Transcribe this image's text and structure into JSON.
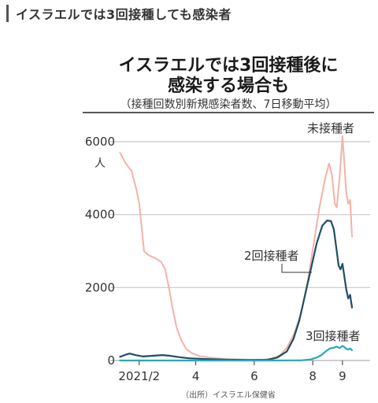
{
  "header": {
    "title": "イスラエルでは3回接種しても感染者"
  },
  "colors": {
    "unvaccinated": "#f2b3a6",
    "two_doses": "#1f4e66",
    "three_doses": "#2aa7b8",
    "grid": "#c8c8c8",
    "baseline": "#b0b0b0"
  },
  "chart_data": {
    "type": "line",
    "title": "イスラエルでは3回接種後に",
    "title_line2": "感染する場合も",
    "subtitle": "（接種回数別新規感染者数、7日移動平均）",
    "ylabel": "",
    "y_unit": "人",
    "ylim": [
      0,
      6000
    ],
    "x_domain": [
      "2021-01-10",
      "2021-09-20"
    ],
    "y_ticks": [
      {
        "value": 0,
        "label": "0"
      },
      {
        "value": 2000,
        "label": "2000"
      },
      {
        "value": 4000,
        "label": "4000"
      },
      {
        "value": 6000,
        "label": "6000"
      }
    ],
    "x_ticks": [
      {
        "date": "2021-02-01",
        "label": "2021/2"
      },
      {
        "date": "2021-04-01",
        "label": "4"
      },
      {
        "date": "2021-06-01",
        "label": "6"
      },
      {
        "date": "2021-08-01",
        "label": "8"
      },
      {
        "date": "2021-09-01",
        "label": "9"
      }
    ],
    "grid": true,
    "series": [
      {
        "name": "未接種者",
        "color_key": "unvaccinated",
        "points": [
          [
            "2021-01-12",
            5700
          ],
          [
            "2021-01-18",
            5400
          ],
          [
            "2021-01-24",
            5200
          ],
          [
            "2021-01-29",
            4700
          ],
          [
            "2021-02-01",
            4300
          ],
          [
            "2021-02-03",
            3800
          ],
          [
            "2021-02-06",
            3000
          ],
          [
            "2021-02-10",
            2900
          ],
          [
            "2021-02-18",
            2800
          ],
          [
            "2021-02-24",
            2700
          ],
          [
            "2021-02-28",
            2500
          ],
          [
            "2021-03-04",
            2000
          ],
          [
            "2021-03-08",
            1400
          ],
          [
            "2021-03-12",
            900
          ],
          [
            "2021-03-17",
            550
          ],
          [
            "2021-03-22",
            320
          ],
          [
            "2021-03-28",
            200
          ],
          [
            "2021-04-05",
            120
          ],
          [
            "2021-04-15",
            80
          ],
          [
            "2021-05-01",
            40
          ],
          [
            "2021-05-20",
            25
          ],
          [
            "2021-06-10",
            20
          ],
          [
            "2021-06-20",
            60
          ],
          [
            "2021-06-28",
            150
          ],
          [
            "2021-07-05",
            350
          ],
          [
            "2021-07-12",
            700
          ],
          [
            "2021-07-20",
            1300
          ],
          [
            "2021-07-27",
            2200
          ],
          [
            "2021-08-02",
            3200
          ],
          [
            "2021-08-08",
            4200
          ],
          [
            "2021-08-14",
            5000
          ],
          [
            "2021-08-18",
            5400
          ],
          [
            "2021-08-21",
            5100
          ],
          [
            "2021-08-24",
            4300
          ],
          [
            "2021-08-26",
            4200
          ],
          [
            "2021-08-29",
            5000
          ],
          [
            "2021-09-01",
            6150
          ],
          [
            "2021-09-03",
            5400
          ],
          [
            "2021-09-05",
            4600
          ],
          [
            "2021-09-07",
            4300
          ],
          [
            "2021-09-09",
            4400
          ],
          [
            "2021-09-11",
            3400
          ]
        ]
      },
      {
        "name": "2回接種者",
        "color_key": "two_doses",
        "points": [
          [
            "2021-01-12",
            100
          ],
          [
            "2021-01-18",
            160
          ],
          [
            "2021-01-22",
            190
          ],
          [
            "2021-01-28",
            150
          ],
          [
            "2021-02-05",
            110
          ],
          [
            "2021-02-15",
            130
          ],
          [
            "2021-02-25",
            150
          ],
          [
            "2021-03-05",
            130
          ],
          [
            "2021-03-15",
            90
          ],
          [
            "2021-03-25",
            60
          ],
          [
            "2021-04-10",
            40
          ],
          [
            "2021-05-01",
            25
          ],
          [
            "2021-05-25",
            15
          ],
          [
            "2021-06-15",
            20
          ],
          [
            "2021-06-25",
            80
          ],
          [
            "2021-07-05",
            250
          ],
          [
            "2021-07-12",
            600
          ],
          [
            "2021-07-18",
            1100
          ],
          [
            "2021-07-24",
            1800
          ],
          [
            "2021-07-30",
            2500
          ],
          [
            "2021-08-05",
            3200
          ],
          [
            "2021-08-11",
            3700
          ],
          [
            "2021-08-16",
            3840
          ],
          [
            "2021-08-20",
            3820
          ],
          [
            "2021-08-23",
            3600
          ],
          [
            "2021-08-26",
            3000
          ],
          [
            "2021-08-28",
            2600
          ],
          [
            "2021-08-30",
            2500
          ],
          [
            "2021-09-01",
            2650
          ],
          [
            "2021-09-03",
            2300
          ],
          [
            "2021-09-05",
            1950
          ],
          [
            "2021-09-07",
            1700
          ],
          [
            "2021-09-09",
            1800
          ],
          [
            "2021-09-11",
            1450
          ]
        ]
      },
      {
        "name": "3回接種者",
        "color_key": "three_doses",
        "points": [
          [
            "2021-01-12",
            0
          ],
          [
            "2021-03-01",
            0
          ],
          [
            "2021-05-01",
            0
          ],
          [
            "2021-06-15",
            0
          ],
          [
            "2021-07-20",
            5
          ],
          [
            "2021-07-30",
            30
          ],
          [
            "2021-08-05",
            80
          ],
          [
            "2021-08-10",
            150
          ],
          [
            "2021-08-15",
            260
          ],
          [
            "2021-08-19",
            330
          ],
          [
            "2021-08-23",
            350
          ],
          [
            "2021-08-26",
            380
          ],
          [
            "2021-08-29",
            340
          ],
          [
            "2021-09-01",
            400
          ],
          [
            "2021-09-03",
            370
          ],
          [
            "2021-09-05",
            320
          ],
          [
            "2021-09-07",
            300
          ],
          [
            "2021-09-09",
            330
          ],
          [
            "2021-09-11",
            280
          ]
        ]
      }
    ],
    "annotations": [
      {
        "series": "未接種者",
        "text": "未接種者"
      },
      {
        "series": "2回接種者",
        "text": "2回接種者"
      },
      {
        "series": "3回接種者",
        "text": "3回接種者"
      }
    ],
    "source": "（出所）イスラエル保健省"
  }
}
